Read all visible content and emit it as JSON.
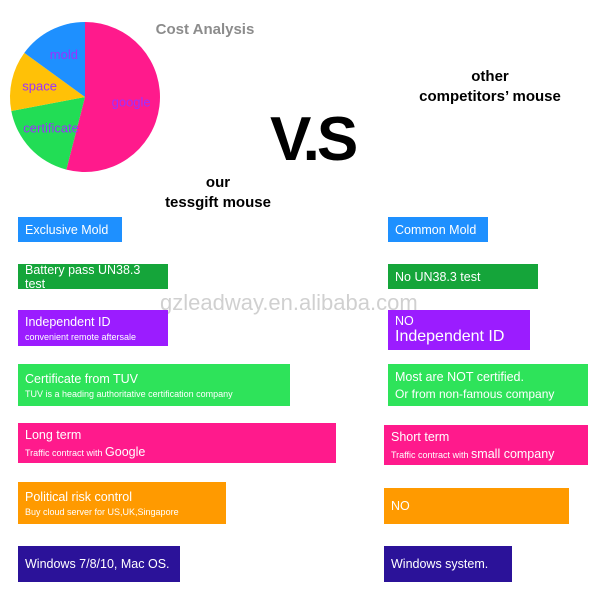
{
  "chart_data": {
    "type": "pie",
    "title": "Cost Analysis",
    "categories": [
      "google",
      "certificate",
      "space",
      "mold"
    ],
    "values": [
      54,
      18,
      13,
      15
    ],
    "colors": [
      "#ff1a8c",
      "#22dd55",
      "#ffc107",
      "#1e90ff"
    ]
  },
  "vs": "V.S",
  "left_heading": [
    "our",
    "tessgift mouse"
  ],
  "right_heading": [
    "other",
    "competitors’ mouse"
  ],
  "watermark": "gzleadway.en.alibaba.com",
  "left": [
    {
      "title": "Exclusive Mold"
    },
    {
      "title": "Battery pass UN38.3 test"
    },
    {
      "title": "Independent ID",
      "note": "convenient remote aftersale"
    },
    {
      "title": "Certificate from TUV",
      "note": "TUV is a heading authoritative certification company"
    },
    {
      "title": "Long term",
      "note": "Traffic contract with",
      "note_emphasis": "Google"
    },
    {
      "title": "Political risk control",
      "note": "Buy cloud server for US,UK,Singapore"
    },
    {
      "title": "Windows 7/8/10, Mac OS."
    }
  ],
  "right": [
    {
      "title": "Common Mold"
    },
    {
      "title": "No UN38.3 test"
    },
    {
      "title": "NO",
      "emphasis": "Independent ID"
    },
    {
      "title": "Most are NOT certified.",
      "note": "Or from non-famous company"
    },
    {
      "title": "Short term",
      "note": "Traffic contract with",
      "note_emphasis": "small company"
    },
    {
      "title": "NO"
    },
    {
      "title": "Windows system."
    }
  ]
}
